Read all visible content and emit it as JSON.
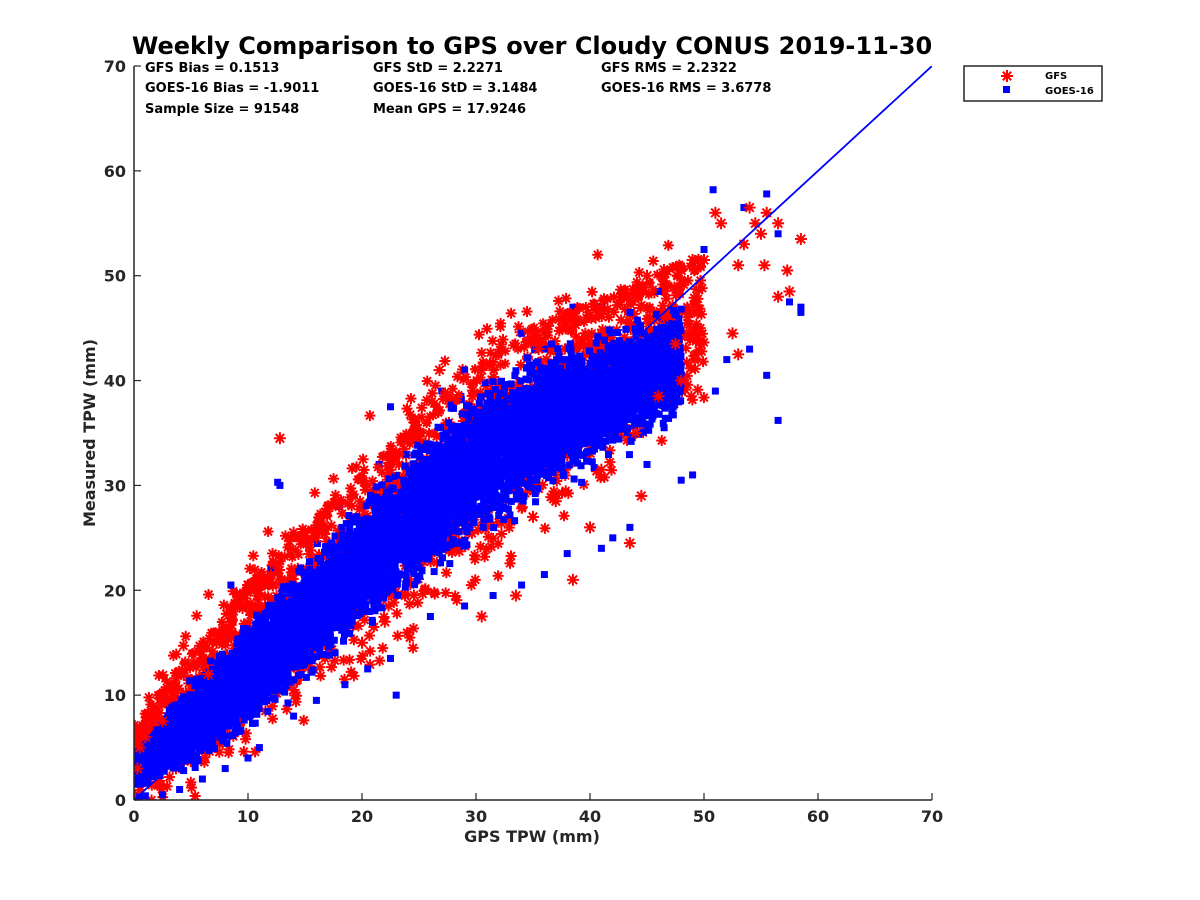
{
  "chart_data": {
    "type": "scatter",
    "title": "Weekly Comparison to GPS over Cloudy CONUS 2019-11-30",
    "xlabel": "GPS TPW (mm)",
    "ylabel": "Measured TPW (mm)",
    "xlim": [
      0,
      70
    ],
    "ylim": [
      0,
      70
    ],
    "xticks": [
      "0",
      "10",
      "20",
      "30",
      "40",
      "50",
      "60",
      "70"
    ],
    "yticks": [
      "0",
      "10",
      "20",
      "30",
      "40",
      "50",
      "60",
      "70"
    ],
    "grid": false,
    "legend": "outside-top-right",
    "stats": [
      [
        "GFS Bias = 0.1513",
        "GFS StD = 2.2271",
        "GFS RMS = 2.2322"
      ],
      [
        "GOES-16 Bias = -1.9011",
        "GOES-16 StD = 3.1484",
        "GOES-16 RMS = 3.6778"
      ],
      [
        "Sample Size = 91548",
        "Mean GPS = 17.9246",
        ""
      ]
    ],
    "series": [
      {
        "name": "GFS",
        "marker": "asterisk",
        "color": "#ff0000",
        "band": [
          [
            0,
            1.5,
            6.5
          ],
          [
            5,
            3.5,
            13.5
          ],
          [
            10,
            7.5,
            20
          ],
          [
            15,
            11.5,
            25.5
          ],
          [
            20,
            15.5,
            30.5
          ],
          [
            25,
            20,
            36
          ],
          [
            30,
            23.5,
            41
          ],
          [
            35,
            28.5,
            44.5
          ],
          [
            40,
            32,
            47
          ],
          [
            45,
            37,
            49
          ],
          [
            50,
            41,
            52
          ]
        ],
        "outliers": [
          [
            12.8,
            34.5
          ],
          [
            26.8,
            41
          ],
          [
            45,
            50
          ],
          [
            43.5,
            24.5
          ],
          [
            44.5,
            29
          ],
          [
            38.5,
            21
          ],
          [
            33.5,
            19.5
          ],
          [
            30.5,
            17.5
          ],
          [
            46.5,
            46
          ],
          [
            48,
            50.5
          ],
          [
            49,
            51.5
          ],
          [
            50,
            51.5
          ],
          [
            51,
            56
          ],
          [
            51.5,
            55
          ],
          [
            53,
            51
          ],
          [
            53.5,
            53
          ],
          [
            54,
            56.5
          ],
          [
            54.5,
            55
          ],
          [
            55,
            54
          ],
          [
            55.5,
            56
          ],
          [
            55.3,
            51
          ],
          [
            56.5,
            55
          ],
          [
            57.3,
            50.5
          ],
          [
            58.5,
            53.5
          ],
          [
            56.5,
            48
          ],
          [
            57.5,
            48.5
          ],
          [
            52.5,
            44.5
          ],
          [
            53,
            42.5
          ],
          [
            47.5,
            43.5
          ],
          [
            48,
            40
          ],
          [
            15,
            25.5
          ],
          [
            14,
            25.5
          ],
          [
            9,
            19
          ],
          [
            7.5,
            16
          ],
          [
            8.5,
            17
          ],
          [
            4.5,
            13
          ],
          [
            5.5,
            13
          ],
          [
            3.5,
            10.5
          ],
          [
            2,
            8.5
          ],
          [
            1,
            6
          ],
          [
            0.5,
            5
          ],
          [
            0.2,
            5.5
          ],
          [
            16,
            25
          ],
          [
            18,
            28
          ],
          [
            20.5,
            30
          ],
          [
            22.5,
            31.5
          ],
          [
            25,
            35
          ],
          [
            27.5,
            38.5
          ],
          [
            30.5,
            41
          ],
          [
            35.5,
            43
          ],
          [
            40.5,
            46
          ],
          [
            42.5,
            47.5
          ],
          [
            10,
            20.5
          ],
          [
            12,
            21.5
          ],
          [
            6.5,
            12
          ],
          [
            2.5,
            7.5
          ],
          [
            0.3,
            3
          ],
          [
            35,
            27
          ],
          [
            37,
            28.5
          ],
          [
            40,
            26
          ],
          [
            41,
            31.5
          ],
          [
            25.5,
            20
          ],
          [
            22,
            17
          ],
          [
            20,
            15
          ],
          [
            14,
            10.5
          ],
          [
            46,
            38.5
          ],
          [
            44,
            35
          ]
        ]
      },
      {
        "name": "GOES-16",
        "marker": "square",
        "color": "#0000ff",
        "band": [
          [
            0,
            0.5,
            5
          ],
          [
            5,
            1.5,
            12.5
          ],
          [
            10,
            4.5,
            18.5
          ],
          [
            15,
            9,
            24.5
          ],
          [
            20,
            13.5,
            30.5
          ],
          [
            25,
            17.5,
            36.5
          ],
          [
            30,
            21.5,
            41.5
          ],
          [
            35,
            25.5,
            44.5
          ],
          [
            40,
            28.5,
            46.5
          ],
          [
            45,
            32,
            47.5
          ],
          [
            48,
            35,
            48.5
          ]
        ],
        "outliers": [
          [
            12.6,
            30.3
          ],
          [
            12.8,
            30
          ],
          [
            22.5,
            37.5
          ],
          [
            29,
            41
          ],
          [
            32,
            42.5
          ],
          [
            34,
            44.5
          ],
          [
            38.5,
            47
          ],
          [
            43.5,
            46.5
          ],
          [
            46,
            48.5
          ],
          [
            49,
            51
          ],
          [
            50,
            52.5
          ],
          [
            50.8,
            58.2
          ],
          [
            53.5,
            56.5
          ],
          [
            55.5,
            57.8
          ],
          [
            56.5,
            54
          ],
          [
            57.5,
            47.5
          ],
          [
            58.5,
            47
          ],
          [
            58.5,
            46.5
          ],
          [
            55.5,
            40.5
          ],
          [
            56.5,
            36.2
          ],
          [
            54,
            43
          ],
          [
            52,
            42
          ],
          [
            51,
            39
          ],
          [
            48,
            30.5
          ],
          [
            49,
            31
          ],
          [
            46.5,
            35.5
          ],
          [
            45,
            32
          ],
          [
            43.5,
            26
          ],
          [
            42,
            25
          ],
          [
            41,
            24
          ],
          [
            38,
            23.5
          ],
          [
            36,
            21.5
          ],
          [
            34,
            20.5
          ],
          [
            31.5,
            19.5
          ],
          [
            29,
            18.5
          ],
          [
            26,
            17.5
          ],
          [
            22.5,
            13.5
          ],
          [
            20.5,
            12.5
          ],
          [
            18.5,
            11
          ],
          [
            16,
            9.5
          ],
          [
            14,
            8
          ],
          [
            11,
            5
          ],
          [
            10,
            4
          ],
          [
            8,
            3
          ],
          [
            6,
            2
          ],
          [
            4,
            1
          ],
          [
            2.5,
            0.5
          ],
          [
            8.5,
            20.5
          ],
          [
            12,
            22
          ],
          [
            18,
            28
          ],
          [
            21.5,
            32
          ],
          [
            27,
            39
          ],
          [
            36,
            43
          ],
          [
            41,
            47
          ],
          [
            23,
            10
          ],
          [
            0.5,
            0.3
          ],
          [
            1,
            0.4
          ]
        ]
      }
    ],
    "one_to_one_line": {
      "x": [
        0,
        70
      ],
      "y": [
        0,
        70
      ],
      "color": "#0000ff"
    }
  }
}
